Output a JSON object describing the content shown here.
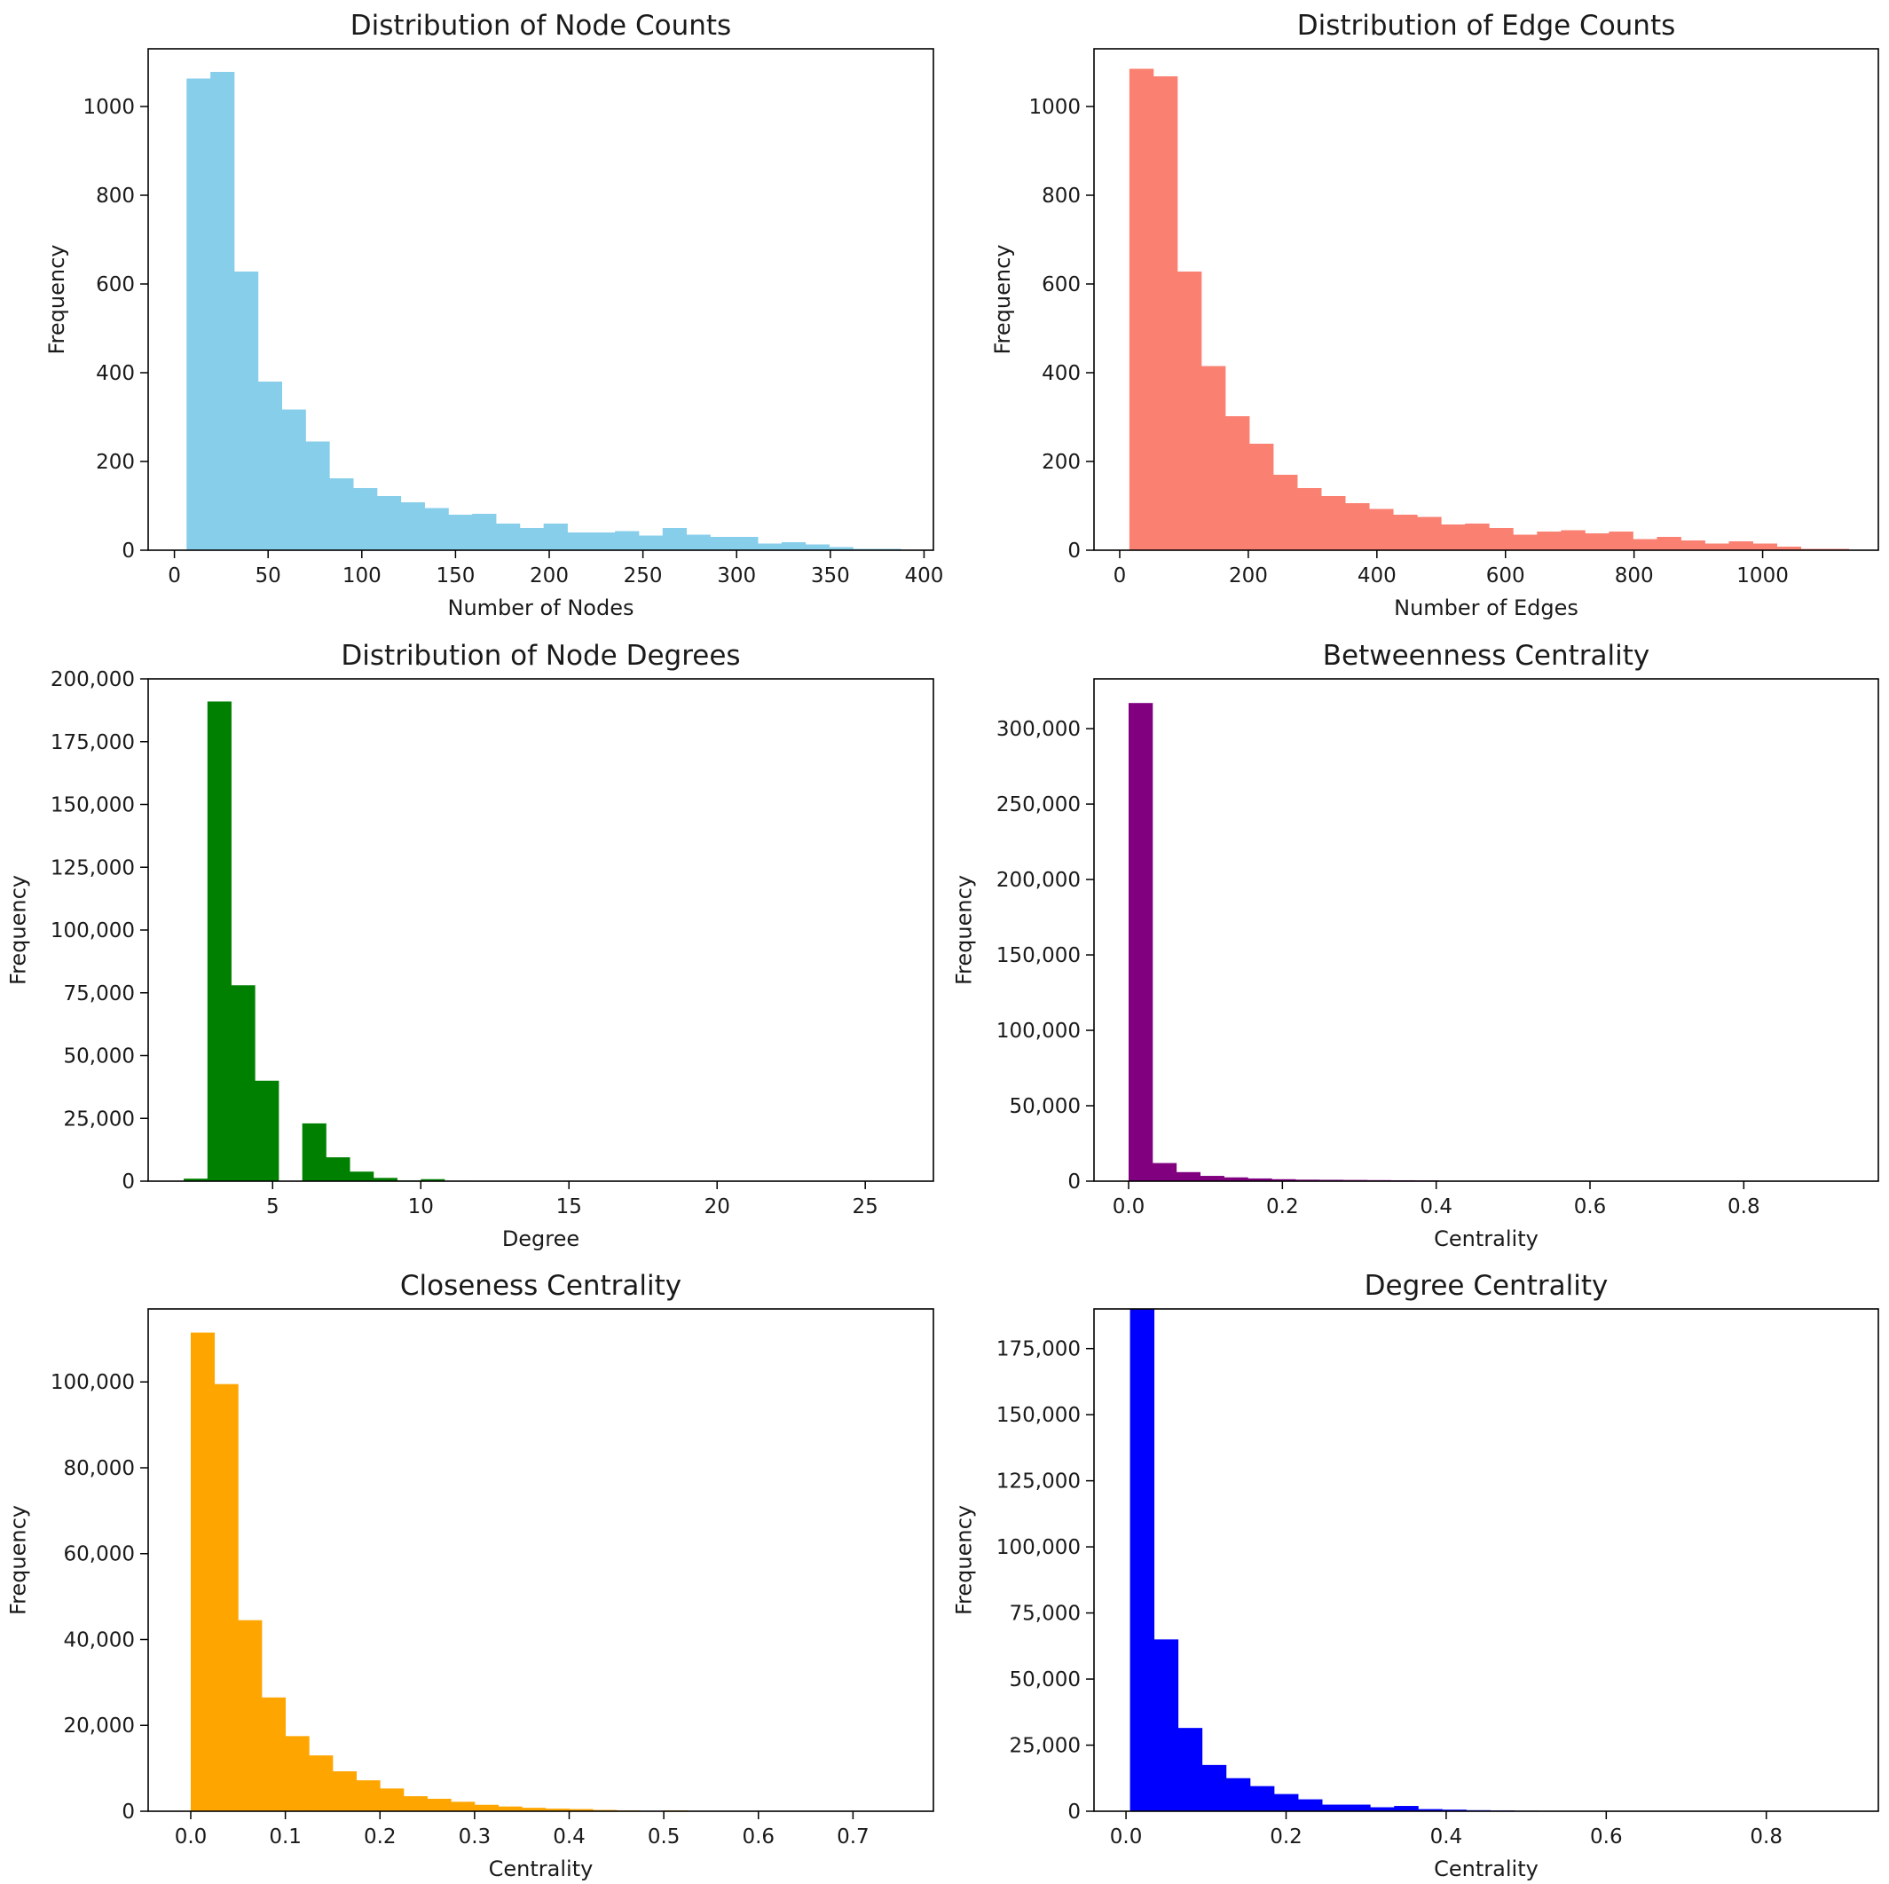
{
  "chart_data": [
    {
      "type": "bar",
      "title": "Distribution of Node Counts",
      "xlabel": "Number of Nodes",
      "ylabel": "Frequency",
      "color": "#87CEEB",
      "xlim": [
        -14,
        405
      ],
      "ylim": [
        0,
        1130
      ],
      "xticks": [
        0,
        50,
        100,
        150,
        200,
        250,
        300,
        350,
        400
      ],
      "xtick_labels": [
        "0",
        "50",
        "100",
        "150",
        "200",
        "250",
        "300",
        "350",
        "400"
      ],
      "yticks": [
        0,
        200,
        400,
        600,
        800,
        1000
      ],
      "ytick_labels": [
        "0",
        "200",
        "400",
        "600",
        "800",
        "1000"
      ],
      "bin_start": 6.5,
      "bin_width": 12.7,
      "values": [
        1063,
        1078,
        628,
        380,
        317,
        245,
        162,
        140,
        122,
        108,
        95,
        80,
        82,
        60,
        50,
        60,
        40,
        40,
        43,
        33,
        50,
        35,
        30,
        30,
        15,
        18,
        13,
        7,
        3,
        3
      ]
    },
    {
      "type": "bar",
      "title": "Distribution of Edge Counts",
      "xlabel": "Number of Edges",
      "ylabel": "Frequency",
      "color": "#FA8072",
      "xlim": [
        -40,
        1180
      ],
      "ylim": [
        0,
        1130
      ],
      "xticks": [
        0,
        200,
        400,
        600,
        800,
        1000
      ],
      "xtick_labels": [
        "0",
        "200",
        "400",
        "600",
        "800",
        "1000"
      ],
      "yticks": [
        0,
        200,
        400,
        600,
        800,
        1000
      ],
      "ytick_labels": [
        "0",
        "200",
        "400",
        "600",
        "800",
        "1000"
      ],
      "bin_start": 15,
      "bin_width": 37.3,
      "values": [
        1085,
        1068,
        628,
        415,
        302,
        240,
        170,
        140,
        122,
        106,
        93,
        80,
        75,
        58,
        60,
        50,
        35,
        42,
        45,
        38,
        42,
        25,
        30,
        22,
        15,
        20,
        15,
        8,
        3,
        3
      ]
    },
    {
      "type": "bar",
      "title": "Distribution of Node Degrees",
      "xlabel": "Degree",
      "ylabel": "Frequency",
      "color": "#008000",
      "xlim": [
        0.8,
        27.3
      ],
      "ylim": [
        0,
        200000
      ],
      "xticks": [
        5,
        10,
        15,
        20,
        25
      ],
      "xtick_labels": [
        "5",
        "10",
        "15",
        "20",
        "25"
      ],
      "yticks": [
        0,
        25000,
        50000,
        75000,
        100000,
        125000,
        150000,
        175000,
        200000
      ],
      "ytick_labels": [
        "0",
        "25,000",
        "50,000",
        "75,000",
        "100,000",
        "125,000",
        "150,000",
        "175,000",
        "200,000"
      ],
      "bin_start": 2.0,
      "bin_width": 0.8,
      "values": [
        1000,
        191000,
        78000,
        40000,
        0,
        23000,
        9500,
        3800,
        1300,
        300,
        800,
        200,
        100,
        50,
        30,
        20,
        10,
        10,
        5,
        5,
        5,
        3,
        3,
        2,
        2,
        1,
        1,
        1,
        1,
        1
      ]
    },
    {
      "type": "bar",
      "title": "Betweenness Centrality",
      "xlabel": "Centrality",
      "ylabel": "Frequency",
      "color": "#800080",
      "xlim": [
        -0.045,
        0.975
      ],
      "ylim": [
        0,
        333000
      ],
      "xticks": [
        0.0,
        0.2,
        0.4,
        0.6,
        0.8
      ],
      "xtick_labels": [
        "0.0",
        "0.2",
        "0.4",
        "0.6",
        "0.8"
      ],
      "yticks": [
        0,
        50000,
        100000,
        150000,
        200000,
        250000,
        300000
      ],
      "ytick_labels": [
        "0",
        "50,000",
        "100,000",
        "150,000",
        "200,000",
        "250,000",
        "300,000"
      ],
      "bin_start": 0.0,
      "bin_width": 0.031,
      "values": [
        317000,
        12000,
        6000,
        3500,
        2500,
        1800,
        1300,
        1000,
        900,
        800,
        700,
        600,
        500,
        80,
        40,
        30,
        20,
        10,
        10,
        5,
        5,
        3,
        3,
        2,
        2,
        1,
        1,
        1,
        1,
        1
      ]
    },
    {
      "type": "bar",
      "title": "Closeness Centrality",
      "xlabel": "Centrality",
      "ylabel": "Frequency",
      "color": "#FFA500",
      "xlim": [
        -0.045,
        0.785
      ],
      "ylim": [
        0,
        117000
      ],
      "xticks": [
        0.0,
        0.1,
        0.2,
        0.3,
        0.4,
        0.5,
        0.6,
        0.7
      ],
      "xtick_labels": [
        "0.0",
        "0.1",
        "0.2",
        "0.3",
        "0.4",
        "0.5",
        "0.6",
        "0.7"
      ],
      "yticks": [
        0,
        20000,
        40000,
        60000,
        80000,
        100000
      ],
      "ytick_labels": [
        "0",
        "20,000",
        "40,000",
        "60,000",
        "80,000",
        "100,000"
      ],
      "bin_start": 0.0,
      "bin_width": 0.025,
      "values": [
        111500,
        99500,
        44500,
        26500,
        17500,
        13000,
        9300,
        7200,
        5300,
        3500,
        2900,
        2200,
        1500,
        1100,
        800,
        600,
        500,
        300,
        200,
        100,
        200,
        100,
        50,
        30,
        20,
        10,
        10,
        5,
        5,
        3
      ]
    },
    {
      "type": "bar",
      "title": "Degree Centrality",
      "xlabel": "Centrality",
      "ylabel": "Frequency",
      "color": "#0000FF",
      "xlim": [
        -0.04,
        0.94
      ],
      "ylim": [
        0,
        190000
      ],
      "xticks": [
        0.0,
        0.2,
        0.4,
        0.6,
        0.8
      ],
      "xtick_labels": [
        "0.0",
        "0.2",
        "0.4",
        "0.6",
        "0.8"
      ],
      "yticks": [
        0,
        25000,
        50000,
        75000,
        100000,
        125000,
        150000,
        175000
      ],
      "ytick_labels": [
        "0",
        "25,000",
        "50,000",
        "75,000",
        "100,000",
        "125,000",
        "150,000",
        "175,000"
      ],
      "bin_start": 0.005,
      "bin_width": 0.03,
      "values": [
        190000,
        65000,
        31500,
        17500,
        12500,
        9500,
        6500,
        4500,
        2500,
        2500,
        1500,
        2000,
        800,
        600,
        400,
        300,
        200,
        100,
        80,
        60,
        40,
        30,
        20,
        10,
        10,
        5,
        5,
        3,
        2,
        1
      ]
    }
  ]
}
